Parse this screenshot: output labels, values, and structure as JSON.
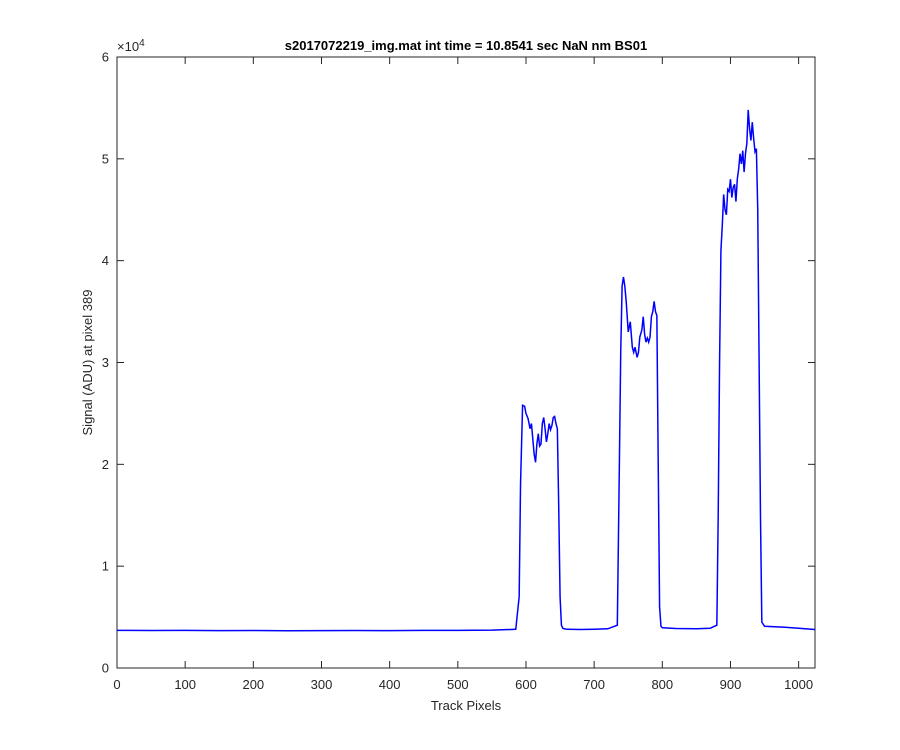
{
  "chart_data": {
    "type": "line",
    "title": "s2017072219_img.mat int time = 10.8541 sec  NaN nm BS01",
    "xlabel": "Track Pixels",
    "ylabel": "Signal (ADU) at pixel 389",
    "xlim": [
      0,
      1024
    ],
    "ylim": [
      0,
      60000
    ],
    "x_ticks": [
      0,
      100,
      200,
      300,
      400,
      500,
      600,
      700,
      800,
      900,
      1000
    ],
    "y_ticks": [
      0,
      1,
      2,
      3,
      4,
      5,
      6
    ],
    "y_exponent_base": "×10",
    "y_exponent_power": "4",
    "grid": false,
    "line_color": "#0000ff",
    "axis_color": "#262626",
    "series": [
      {
        "x": [
          0,
          50,
          100,
          150,
          200,
          250,
          300,
          350,
          400,
          450,
          500,
          550,
          585,
          590,
          592,
          595,
          598,
          600,
          603,
          606,
          608,
          610,
          612,
          614,
          616,
          618,
          620,
          622,
          624,
          626,
          628,
          630,
          632,
          634,
          636,
          638,
          640,
          642,
          644,
          646,
          648,
          650,
          652,
          654,
          656,
          660,
          680,
          700,
          720,
          734,
          737,
          739,
          741,
          743,
          745,
          747,
          750,
          753,
          756,
          758,
          760,
          763,
          765,
          767,
          770,
          772,
          774,
          776,
          778,
          780,
          782,
          784,
          786,
          788,
          790,
          792,
          794,
          796,
          798,
          800,
          820,
          850,
          870,
          880,
          882,
          884,
          886,
          888,
          890,
          892,
          894,
          896,
          898,
          900,
          902,
          904,
          906,
          908,
          910,
          912,
          914,
          916,
          918,
          920,
          922,
          924,
          926,
          928,
          930,
          932,
          934,
          936,
          938,
          940,
          942,
          944,
          946,
          950,
          980,
          1000,
          1024
        ],
        "y": [
          3700,
          3680,
          3700,
          3670,
          3680,
          3660,
          3670,
          3680,
          3670,
          3690,
          3700,
          3720,
          3800,
          7000,
          18000,
          25800,
          25700,
          25000,
          24500,
          23500,
          24000,
          22500,
          21000,
          20200,
          22000,
          23000,
          21800,
          22000,
          24000,
          24600,
          23500,
          22200,
          23000,
          24000,
          23400,
          23800,
          24600,
          24700,
          24000,
          23500,
          16000,
          7000,
          4200,
          3900,
          3850,
          3800,
          3780,
          3800,
          3850,
          4200,
          20000,
          31000,
          37500,
          38400,
          37500,
          36000,
          33000,
          34000,
          31500,
          31000,
          31500,
          30500,
          31000,
          32500,
          33200,
          34500,
          32800,
          32000,
          32400,
          32000,
          32500,
          34500,
          35000,
          36000,
          35000,
          34600,
          20000,
          6000,
          4100,
          3950,
          3880,
          3860,
          3900,
          4200,
          15000,
          30000,
          41000,
          43500,
          46500,
          45000,
          44500,
          47000,
          46800,
          48000,
          46200,
          47200,
          47500,
          45800,
          48000,
          49000,
          50500,
          49500,
          50800,
          48700,
          50500,
          51500,
          54800,
          53000,
          51800,
          53600,
          52000,
          50700,
          51000,
          45000,
          30000,
          15000,
          4500,
          4100,
          4000,
          3900,
          3780
        ]
      }
    ]
  }
}
